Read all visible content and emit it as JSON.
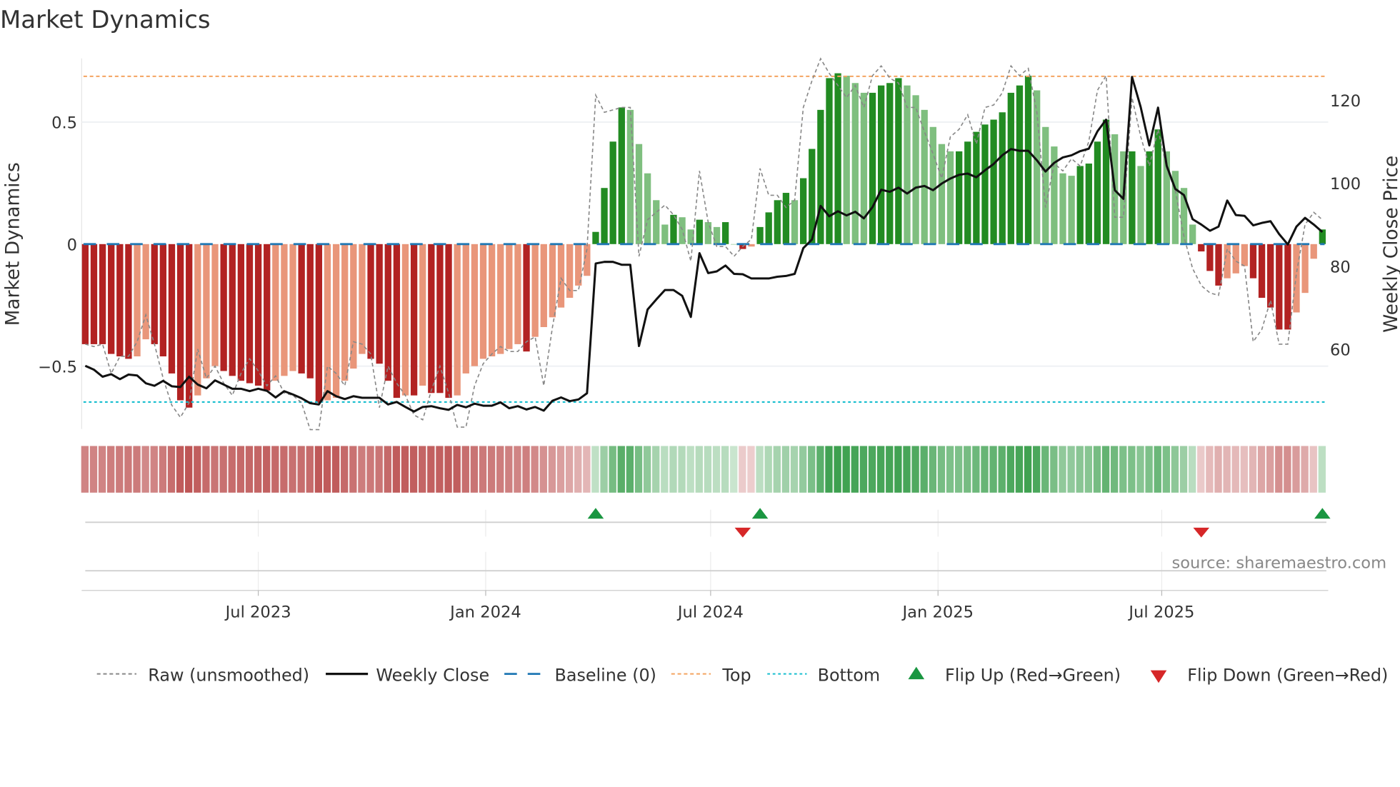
{
  "title": "Market Dynamics",
  "source": "source: sharemaestro.com",
  "colors": {
    "dark_red": "#b22222",
    "light_red": "#e9967a",
    "dark_green": "#228b22",
    "light_green": "#7fbf7f",
    "baseline": "#1f77b4",
    "top": "#f4a460",
    "bottom": "#17becf",
    "raw": "#888888",
    "close": "#111111",
    "flip_up": "#1a9641",
    "flip_down": "#d62728"
  },
  "legend": [
    {
      "key": "raw",
      "label": "Raw (unsmoothed)"
    },
    {
      "key": "close",
      "label": "Weekly Close"
    },
    {
      "key": "baseline",
      "label": "Baseline (0)"
    },
    {
      "key": "top",
      "label": "Top"
    },
    {
      "key": "bottom",
      "label": "Bottom"
    },
    {
      "key": "flip_up",
      "label": "Flip Up (Red→Green)"
    },
    {
      "key": "flip_down",
      "label": "Flip Down (Green→Red)"
    }
  ],
  "chart_data": {
    "type": "bar",
    "title": "Market Dynamics",
    "ylabel": "Market Dynamics",
    "y2label": "Weekly Close Price",
    "ylim": [
      -0.78,
      0.76
    ],
    "y_ticks": [
      {
        "v": 0.5,
        "label": "0.5"
      },
      {
        "v": 0,
        "label": "0"
      },
      {
        "v": -0.5,
        "label": "−0.5"
      }
    ],
    "y2_ticks": [
      {
        "v": 120,
        "label": "120"
      },
      {
        "v": 100,
        "label": "100"
      },
      {
        "v": 80,
        "label": "80"
      },
      {
        "v": 60,
        "label": "60"
      }
    ],
    "x_ticks": [
      {
        "date": "2023-07-01",
        "label": "Jul 2023"
      },
      {
        "date": "2024-01-01",
        "label": "Jan 2024"
      },
      {
        "date": "2024-07-01",
        "label": "Jul 2024"
      },
      {
        "date": "2025-01-01",
        "label": "Jan 2025"
      },
      {
        "date": "2025-07-01",
        "label": "Jul 2025"
      }
    ],
    "start_date": "2023-02-11",
    "frequency": "weekly",
    "top": 0.688,
    "bottom": -0.647,
    "baseline": 0,
    "values": [
      -0.41,
      -0.41,
      -0.41,
      -0.45,
      -0.46,
      -0.47,
      -0.46,
      -0.39,
      -0.41,
      -0.46,
      -0.53,
      -0.64,
      -0.67,
      -0.62,
      -0.55,
      -0.5,
      -0.52,
      -0.54,
      -0.56,
      -0.57,
      -0.58,
      -0.6,
      -0.56,
      -0.54,
      -0.52,
      -0.53,
      -0.55,
      -0.65,
      -0.64,
      -0.63,
      -0.56,
      -0.51,
      -0.45,
      -0.47,
      -0.49,
      -0.56,
      -0.63,
      -0.62,
      -0.62,
      -0.58,
      -0.61,
      -0.61,
      -0.63,
      -0.62,
      -0.53,
      -0.5,
      -0.47,
      -0.46,
      -0.45,
      -0.43,
      -0.41,
      -0.44,
      -0.38,
      -0.34,
      -0.3,
      -0.26,
      -0.22,
      -0.17,
      -0.13,
      0.05,
      0.23,
      0.42,
      0.56,
      0.55,
      0.41,
      0.29,
      0.18,
      0.08,
      0.12,
      0.11,
      0.06,
      0.1,
      0.09,
      0.07,
      0.09,
      0.0,
      -0.02,
      -0.01,
      0.07,
      0.13,
      0.18,
      0.21,
      0.18,
      0.27,
      0.39,
      0.55,
      0.68,
      0.7,
      0.69,
      0.66,
      0.62,
      0.62,
      0.65,
      0.66,
      0.68,
      0.65,
      0.61,
      0.55,
      0.48,
      0.41,
      0.38,
      0.38,
      0.42,
      0.46,
      0.49,
      0.51,
      0.54,
      0.62,
      0.65,
      0.69,
      0.63,
      0.48,
      0.4,
      0.29,
      0.28,
      0.32,
      0.33,
      0.42,
      0.51,
      0.45,
      0.38,
      0.38,
      0.32,
      0.38,
      0.47,
      0.38,
      0.3,
      0.23,
      0.08,
      -0.03,
      -0.11,
      -0.17,
      -0.14,
      -0.12,
      -0.09,
      -0.14,
      -0.22,
      -0.26,
      -0.35,
      -0.35,
      -0.28,
      -0.2,
      -0.06,
      0.06
    ],
    "raw": [
      -0.41,
      -0.42,
      -0.41,
      -0.53,
      -0.46,
      -0.46,
      -0.4,
      -0.29,
      -0.41,
      -0.55,
      -0.66,
      -0.71,
      -0.65,
      -0.43,
      -0.55,
      -0.5,
      -0.57,
      -0.62,
      -0.53,
      -0.47,
      -0.52,
      -0.58,
      -0.54,
      -0.61,
      -0.62,
      -0.65,
      -0.76,
      -0.76,
      -0.5,
      -0.53,
      -0.58,
      -0.4,
      -0.41,
      -0.45,
      -0.67,
      -0.5,
      -0.57,
      -0.62,
      -0.7,
      -0.72,
      -0.6,
      -0.5,
      -0.61,
      -0.75,
      -0.75,
      -0.58,
      -0.49,
      -0.45,
      -0.42,
      -0.44,
      -0.44,
      -0.4,
      -0.38,
      -0.58,
      -0.34,
      -0.14,
      -0.19,
      -0.19,
      -0.02,
      0.61,
      0.54,
      0.55,
      0.56,
      0.56,
      -0.05,
      0.1,
      0.13,
      0.16,
      0.12,
      0.06,
      -0.07,
      0.3,
      0.09,
      -0.01,
      -0.01,
      -0.05,
      -0.01,
      0.02,
      0.31,
      0.2,
      0.2,
      0.15,
      0.18,
      0.56,
      0.67,
      0.76,
      0.7,
      0.65,
      0.6,
      0.65,
      0.56,
      0.69,
      0.73,
      0.68,
      0.66,
      0.56,
      0.56,
      0.46,
      0.37,
      0.27,
      0.44,
      0.47,
      0.53,
      0.41,
      0.56,
      0.57,
      0.62,
      0.73,
      0.69,
      0.72,
      0.54,
      0.15,
      0.33,
      0.3,
      0.35,
      0.32,
      0.42,
      0.63,
      0.69,
      0.11,
      0.11,
      0.6,
      0.44,
      0.32,
      0.47,
      0.31,
      0.22,
      0.03,
      -0.1,
      -0.17,
      -0.2,
      -0.21,
      -0.02,
      -0.07,
      -0.09,
      -0.4,
      -0.35,
      -0.23,
      -0.41,
      -0.41,
      -0.12,
      0.08,
      0.13,
      0.1
    ],
    "weekly_close": [
      55.9,
      55.0,
      53.3,
      53.9,
      52.7,
      53.8,
      53.6,
      51.7,
      51.1,
      52.3,
      51.0,
      50.8,
      53.3,
      51.4,
      50.5,
      52.4,
      51.4,
      50.4,
      50.4,
      49.8,
      50.4,
      49.9,
      48.3,
      49.8,
      49.0,
      48.1,
      46.9,
      46.6,
      49.8,
      48.6,
      47.9,
      48.6,
      48.2,
      48.2,
      48.2,
      46.6,
      47.2,
      46.0,
      44.9,
      46.0,
      46.2,
      45.7,
      45.3,
      46.5,
      45.9,
      46.8,
      46.3,
      46.3,
      47.1,
      45.7,
      46.2,
      45.4,
      46.0,
      45.1,
      47.5,
      48.3,
      47.4,
      47.8,
      49.3,
      80.6,
      81.0,
      81.0,
      80.3,
      80.3,
      60.7,
      69.5,
      71.9,
      74.2,
      74.2,
      72.8,
      67.7,
      83.1,
      78.3,
      78.7,
      80.1,
      78.1,
      78.0,
      77.0,
      77.0,
      77.0,
      77.4,
      77.6,
      78.1,
      84.3,
      86.4,
      94.5,
      92.0,
      93.2,
      92.2,
      93.1,
      91.5,
      94.2,
      98.4,
      97.9,
      98.9,
      97.5,
      98.9,
      99.3,
      98.3,
      99.9,
      101.1,
      102.0,
      102.3,
      101.4,
      103.1,
      104.6,
      106.7,
      108.2,
      107.8,
      107.8,
      105.5,
      102.8,
      104.9,
      106.2,
      106.7,
      107.7,
      108.3,
      112.5,
      115.3,
      98.3,
      96.2,
      125.6,
      118.3,
      109.1,
      118.2,
      104.2,
      98.6,
      97.1,
      91.3,
      90.0,
      88.5,
      89.5,
      95.8,
      92.3,
      92.1,
      89.8,
      90.4,
      90.8,
      87.7,
      85.2,
      89.5,
      91.6,
      90.0,
      88.2
    ],
    "flip_up_weeks": [
      60,
      79,
      144
    ],
    "flip_down_weeks": [
      77,
      130
    ],
    "legend_position": "bottom"
  }
}
